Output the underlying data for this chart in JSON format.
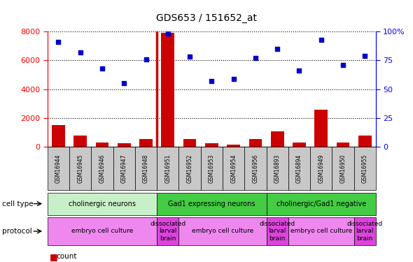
{
  "title": "GDS653 / 151652_at",
  "samples": [
    "GSM16944",
    "GSM16945",
    "GSM16946",
    "GSM16947",
    "GSM16948",
    "GSM16951",
    "GSM16952",
    "GSM16953",
    "GSM16954",
    "GSM16956",
    "GSM16893",
    "GSM16894",
    "GSM16949",
    "GSM16950",
    "GSM16955"
  ],
  "counts": [
    1500,
    800,
    300,
    250,
    550,
    7900,
    550,
    250,
    150,
    550,
    1050,
    300,
    2550,
    300,
    800
  ],
  "percentile": [
    91,
    82,
    68,
    55,
    76,
    98,
    78,
    57,
    59,
    77,
    85,
    66,
    93,
    71,
    79
  ],
  "ylim_left": [
    0,
    8000
  ],
  "ylim_right": [
    0,
    100
  ],
  "yticks_left": [
    0,
    2000,
    4000,
    6000,
    8000
  ],
  "yticks_right": [
    0,
    25,
    50,
    75,
    100
  ],
  "cell_type_data": [
    {
      "label": "cholinergic neurons",
      "start": 0,
      "end": 5,
      "color": "#c8f0c8"
    },
    {
      "label": "Gad1 expressing neurons",
      "start": 5,
      "end": 10,
      "color": "#44cc44"
    },
    {
      "label": "cholinergic/Gad1 negative",
      "start": 10,
      "end": 15,
      "color": "#44cc44"
    }
  ],
  "protocol_data": [
    {
      "label": "embryo cell culture",
      "start": 0,
      "end": 5,
      "color": "#ee88ee"
    },
    {
      "label": "dissociated\nlarval\nbrain",
      "start": 5,
      "end": 6,
      "color": "#dd44dd"
    },
    {
      "label": "embryo cell culture",
      "start": 6,
      "end": 10,
      "color": "#ee88ee"
    },
    {
      "label": "dissociated\nlarval\nbrain",
      "start": 10,
      "end": 11,
      "color": "#dd44dd"
    },
    {
      "label": "embryo cell culture",
      "start": 11,
      "end": 14,
      "color": "#ee88ee"
    },
    {
      "label": "dissociated\nlarval\nbrain",
      "start": 14,
      "end": 15,
      "color": "#dd44dd"
    }
  ],
  "bar_color": "#CC0000",
  "dot_color": "#0000CC",
  "vline_pos": 4.5,
  "vline_color": "#CC0000",
  "tick_label_bg": "#C8C8C8",
  "plot_bg": "#ffffff"
}
